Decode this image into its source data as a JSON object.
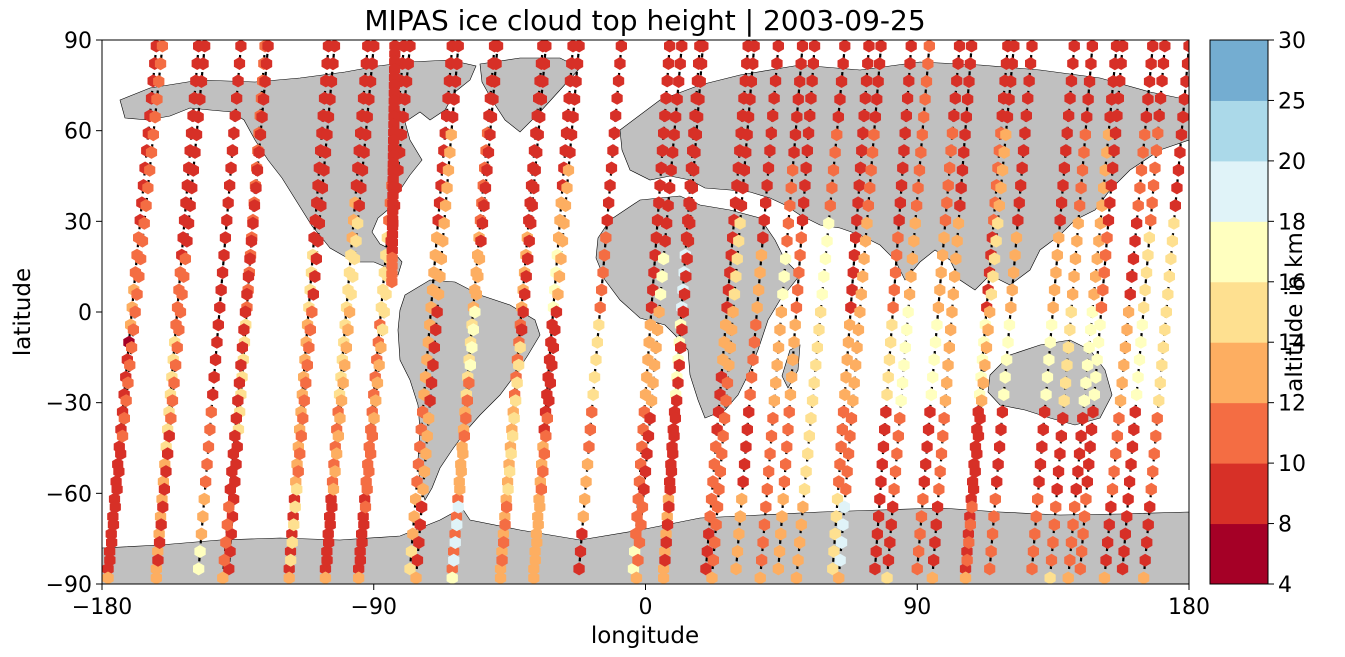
{
  "chart_data": {
    "type": "scatter",
    "title": "MIPAS ice cloud top height | 2003-09-25",
    "xlabel": "longitude",
    "ylabel": "latitude",
    "xlim": [
      -180,
      180
    ],
    "ylim": [
      -90,
      90
    ],
    "x_ticks": [
      -180,
      -90,
      0,
      90,
      180
    ],
    "x_tick_labels": [
      "−180",
      "−90",
      "0",
      "90",
      "180"
    ],
    "y_ticks": [
      -90,
      -60,
      -30,
      0,
      30,
      60,
      90
    ],
    "y_tick_labels": [
      "−90",
      "−60",
      "−30",
      "0",
      "30",
      "60",
      "90"
    ],
    "grid": false,
    "basemap": "world coastlines, land filled grey",
    "colors": {
      "land": "#c0c0c0",
      "coast": "#000000",
      "track": "#000000",
      "background": "#ffffff"
    },
    "colorbar": {
      "label": "altitude in km",
      "placement": "right",
      "bounds": [
        4,
        8,
        10,
        12,
        14,
        16,
        18,
        20,
        25,
        30
      ],
      "tick_labels": [
        "4",
        "8",
        "10",
        "12",
        "14",
        "16",
        "18",
        "20",
        "25",
        "30"
      ],
      "colors": [
        "#a50026",
        "#d73027",
        "#f46d43",
        "#fdae61",
        "#fee090",
        "#ffffbf",
        "#e0f3f8",
        "#abd9e9",
        "#74add1",
        "#313695"
      ]
    },
    "orbits": [
      {
        "lon_start": -162,
        "lon_end": -178,
        "lat_start": 88,
        "lat_end": -85,
        "fill": "-90:10,-40:9,-15:8,-10:7,10:12,30:10,45:8,70:9,90:8"
      },
      {
        "lon_start": -178,
        "lon_end": -160,
        "lat_start": -88,
        "lat_end": 88,
        "fill": "-85:12,-75:9,-60:8,-45:9,-38:10,90:10"
      },
      {
        "lon_start": -148,
        "lon_end": -162,
        "lat_start": 88,
        "lat_end": -85,
        "fill": "-90:13,-60:12,-45:13,-30:14,-10:15,15:11,40:9,90:8"
      },
      {
        "lon_start": -162,
        "lon_end": -146,
        "lat_start": -88,
        "lat_end": 88,
        "fill": "-85:12,-55:8,-40:8,-20:10,0:11,20:10,90:8"
      },
      {
        "lon_start": -134,
        "lon_end": -148,
        "lat_start": 88,
        "lat_end": -85,
        "fill": "-90:14,-75:17,-60:12,-30:11,-10:8,10:9,40:8,90:8"
      },
      {
        "lon_start": -126,
        "lon_end": -138,
        "lat_start": 88,
        "lat_end": -85,
        "fill": "-90:12,-60:9,-40:8,0:15,20:11,90:10"
      },
      {
        "lon_start": -140,
        "lon_end": -125,
        "lat_start": -88,
        "lat_end": 88,
        "fill": "-85:13,-60:11,-30:8,0:8,30:8,90:8"
      },
      {
        "lon_start": -105,
        "lon_end": -118,
        "lat_start": 88,
        "lat_end": -85,
        "fill": "-90:12,-60:8,-30:12,0:13,20:15,40:8,90:9"
      },
      {
        "lon_start": -118,
        "lon_end": -103,
        "lat_start": -88,
        "lat_end": 88,
        "fill": "-85:13,-70:14,-55:15,-30:11,0:10,90:9"
      },
      {
        "lon_start": -92,
        "lon_end": -106,
        "lat_start": 88,
        "lat_end": -85,
        "fill": "-90:12,-60:8,-30:10,0:14,20:15,40:12,70:9,90:9"
      },
      {
        "lon_start": -106,
        "lon_end": -90,
        "lat_start": -88,
        "lat_end": 88,
        "fill": "-85:12,-60:8,-30:12,0:13,30:14,90:9"
      },
      {
        "lon_start": -80,
        "lon_end": -95,
        "lat_start": 88,
        "lat_end": -85,
        "fill": "-90:12,-60:8,-30:11,0:11,30:15,50:10,90:9"
      },
      {
        "lon_start": -95,
        "lon_end": -78,
        "lat_start": -88,
        "lat_end": 88,
        "fill": "-85:12,-70:8,-40:10,-10:13,20:14,40:9,90:9"
      },
      {
        "lon_start": -83,
        "lon_end": -84,
        "lat_start": 88,
        "lat_end": 10,
        "fill": "20:11,90:9"
      },
      {
        "lon_start": -64,
        "lon_end": -78,
        "lat_start": 88,
        "lat_end": -85,
        "fill": "-90:12,-75:14,-60:13,-30:11,0:12,30:12,70:9,90:8"
      },
      {
        "lon_start": -76,
        "lon_end": -62,
        "lat_start": -88,
        "lat_end": 88,
        "fill": "-85:12,-60:8,-30:12,0:8,20:13,60:12,90:9"
      },
      {
        "lon_start": -50,
        "lon_end": -64,
        "lat_start": 88,
        "lat_end": -85,
        "fill": "-90:12,-60:10,-30:13,0:15,30:13,60:10,90:8"
      },
      {
        "lon_start": -64,
        "lon_end": -49,
        "lat_start": -88,
        "lat_end": 88,
        "fill": "-85:16,-60:18,-45:13,-20:11,0:17,20:12,60:9,90:8"
      },
      {
        "lon_start": -34,
        "lon_end": -48,
        "lat_start": 88,
        "lat_end": -85,
        "fill": "-90:12,-60:12,-30:13,0:10,30:12,90:8"
      },
      {
        "lon_start": -48,
        "lon_end": -33,
        "lat_start": -88,
        "lat_end": 88,
        "fill": "-85:13,-60:11,-30:14,-10:14,10:9,30:9,60:8,90:8"
      },
      {
        "lon_start": -24,
        "lon_end": -37,
        "lat_start": 88,
        "lat_end": -85,
        "fill": "-90:13,-70:12,-40:12,-20:9,0:8,20:16,40:12,60:9,90:8"
      },
      {
        "lon_start": -37,
        "lon_end": -22,
        "lat_start": -88,
        "lat_end": 88,
        "fill": "-85:13,-60:13,-30:10,0:9,20:12,50:13,90:9"
      },
      {
        "lon_start": -8,
        "lon_end": -22,
        "lat_start": 88,
        "lat_end": -85,
        "fill": "-90:15,-70:8,-50:12,-30:11,0:15,30:11,90:8"
      },
      {
        "lon_start": 8,
        "lon_end": -4,
        "lat_start": 88,
        "lat_end": -85,
        "fill": "-90:14,-75:17,-60:11,-30:10,0:13,30:9,60:9,90:8"
      },
      {
        "lon_start": -3,
        "lon_end": 12,
        "lat_start": -88,
        "lat_end": 88,
        "fill": "-85:13,-60:10,-30:8,0:13,20:16,50:9,90:8"
      },
      {
        "lon_start": 18,
        "lon_end": 6,
        "lat_start": 88,
        "lat_end": -85,
        "fill": "-90:13,-60:12,-30:8,0:17,20:18,40:8,90:8"
      },
      {
        "lon_start": 6,
        "lon_end": 19,
        "lat_start": -88,
        "lat_end": 88,
        "fill": "-85:12,-60:8,-30:9,0:8,20:8,40:9,60:9,90:8"
      },
      {
        "lon_start": 34,
        "lon_end": 20,
        "lat_start": 88,
        "lat_end": -85,
        "fill": "-90:13,-70:8,-40:11,-20:8,0:12,30:8,60:8,90:9"
      },
      {
        "lon_start": 22,
        "lon_end": 36,
        "lat_start": -88,
        "lat_end": 88,
        "fill": "-85:12,-60:10,-20:11,0:13,30:15,60:8,90:8"
      },
      {
        "lon_start": 44,
        "lon_end": 30,
        "lat_start": 88,
        "lat_end": -85,
        "fill": "-90:12,-60:12,-30:8,0:10,20:12,40:8,90:9"
      },
      {
        "lon_start": 38,
        "lon_end": 52,
        "lat_start": -88,
        "lat_end": 88,
        "fill": "-85:12,-60:10,-30:11,0:12,20:16,50:11,90:8"
      },
      {
        "lon_start": 56,
        "lon_end": 44,
        "lat_start": 88,
        "lat_end": -85,
        "fill": "-90:12,-60:12,-30:10,0:13,30:11,60:8,90:8"
      },
      {
        "lon_start": 50,
        "lon_end": 66,
        "lat_start": -88,
        "lat_end": 88,
        "fill": "-85:13,-60:12,-30:14,0:15,30:17,60:11,90:9"
      },
      {
        "lon_start": 74,
        "lon_end": 62,
        "lat_start": 88,
        "lat_end": -85,
        "fill": "-90:13,-60:14,-30:10,0:12,20:8,60:8,90:8"
      },
      {
        "lon_start": 64,
        "lon_end": 78,
        "lat_start": -88,
        "lat_end": 88,
        "fill": "-85:12,-60:19,-30:11,0:12,30:13,60:10,90:9"
      },
      {
        "lon_start": 88,
        "lon_end": 76,
        "lat_start": 88,
        "lat_end": -85,
        "fill": "-90:12,-60:9,-30:8,0:15,30:10,60:9,90:8"
      },
      {
        "lon_start": 80,
        "lon_end": 94,
        "lat_start": -88,
        "lat_end": 88,
        "fill": "-85:14,-60:8,-30:11,0:17,30:12,60:11,90:10"
      },
      {
        "lon_start": 104,
        "lon_end": 90,
        "lat_start": 88,
        "lat_end": -85,
        "fill": "-90:12,-60:11,-30:8,0:16,30:12,60:10,90:9"
      },
      {
        "lon_start": 95,
        "lon_end": 108,
        "lat_start": -88,
        "lat_end": 88,
        "fill": "-85:12,-60:9,-30:10,0:13,30:12,60:9,90:8"
      },
      {
        "lon_start": 120,
        "lon_end": 106,
        "lat_start": 88,
        "lat_end": -85,
        "fill": "-90:13,-60:8,-30:8,0:16,30:9,60:10,90:9"
      },
      {
        "lon_start": 106,
        "lon_end": 122,
        "lat_start": -88,
        "lat_end": 88,
        "fill": "-85:13,-60:10,-30:9,0:13,30:15,60:12,90:9"
      },
      {
        "lon_start": 128,
        "lon_end": 114,
        "lat_start": 88,
        "lat_end": -85,
        "fill": "-90:12,-60:10,-30:9,0:16,30:12,60:9,90:8"
      },
      {
        "lon_start": 134,
        "lon_end": 148,
        "lat_start": -88,
        "lat_end": 88,
        "fill": "-85:14,-60:11,-30:8,0:14,30:12,60:10,90:9"
      },
      {
        "lon_start": 142,
        "lon_end": 128,
        "lat_start": 88,
        "lat_end": -85,
        "fill": "-90:12,-60:11,-30:8,0:17,30:12,60:9,90:8"
      },
      {
        "lon_start": 140,
        "lon_end": 156,
        "lat_start": -88,
        "lat_end": 88,
        "fill": "-85:12,-60:10,-30:9,0:16,30:12,60:12,90:8"
      },
      {
        "lon_start": 158,
        "lon_end": 144,
        "lat_start": 88,
        "lat_end": -85,
        "fill": "-90:13,-60:10,-30:8,0:17,30:11,60:9,90:8"
      },
      {
        "lon_start": 152,
        "lon_end": 168,
        "lat_start": -88,
        "lat_end": 88,
        "fill": "-85:12,-60:9,-30:10,0:13,30:9,60:11,90:8"
      },
      {
        "lon_start": 172,
        "lon_end": 158,
        "lat_start": 88,
        "lat_end": -85,
        "fill": "-90:10,-60:9,-30:9,0:16,30:14,60:10,90:8"
      },
      {
        "lon_start": 165,
        "lon_end": 180,
        "lat_start": -88,
        "lat_end": 88,
        "fill": "-85:12,-60:8,-30:11,0:14,30:15,60:9,90:8"
      }
    ]
  }
}
